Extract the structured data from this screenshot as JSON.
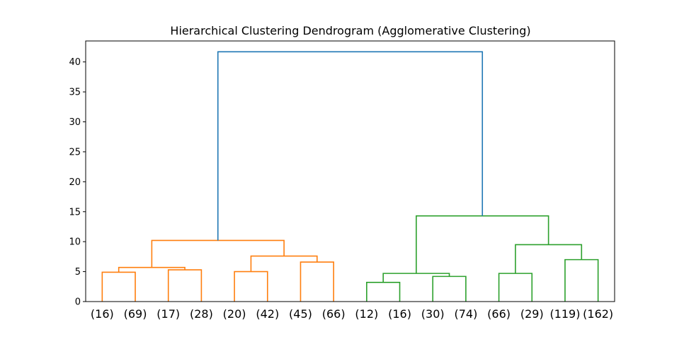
{
  "chart_data": {
    "type": "dendrogram",
    "title": "Hierarchical Clustering Dendrogram (Agglomerative Clustering)",
    "xlabel": "",
    "ylabel": "",
    "ylim": [
      0,
      43.5
    ],
    "yticks": [
      0,
      5,
      10,
      15,
      20,
      25,
      30,
      35,
      40
    ],
    "leaf_labels": [
      "(16)",
      "(69)",
      "(17)",
      "(28)",
      "(20)",
      "(42)",
      "(45)",
      "(66)",
      "(12)",
      "(16)",
      "(30)",
      "(74)",
      "(66)",
      "(29)",
      "(119)",
      "(162)"
    ],
    "colors": {
      "cluster_1": "#ff7f0e",
      "cluster_2": "#2ca02c",
      "root": "#1f77b4"
    },
    "links": [
      {
        "left": 0,
        "right": 1,
        "height": 4.9,
        "color": "cluster_1"
      },
      {
        "left": 2,
        "right": 3,
        "height": 5.3,
        "color": "cluster_1"
      },
      {
        "left": 16,
        "right": 17,
        "height": 5.7,
        "color": "cluster_1"
      },
      {
        "left": 4,
        "right": 5,
        "height": 5.0,
        "color": "cluster_1"
      },
      {
        "left": 6,
        "right": 7,
        "height": 6.6,
        "color": "cluster_1"
      },
      {
        "left": 19,
        "right": 20,
        "height": 7.6,
        "color": "cluster_1"
      },
      {
        "left": 18,
        "right": 21,
        "height": 10.2,
        "color": "cluster_1"
      },
      {
        "left": 8,
        "right": 9,
        "height": 3.2,
        "color": "cluster_2"
      },
      {
        "left": 10,
        "right": 11,
        "height": 4.2,
        "color": "cluster_2"
      },
      {
        "left": 23,
        "right": 24,
        "height": 4.7,
        "color": "cluster_2"
      },
      {
        "left": 12,
        "right": 13,
        "height": 4.7,
        "color": "cluster_2"
      },
      {
        "left": 14,
        "right": 15,
        "height": 7.0,
        "color": "cluster_2"
      },
      {
        "left": 26,
        "right": 27,
        "height": 9.5,
        "color": "cluster_2"
      },
      {
        "left": 25,
        "right": 28,
        "height": 14.3,
        "color": "cluster_2"
      },
      {
        "left": 22,
        "right": 29,
        "height": 41.7,
        "color": "root"
      }
    ]
  }
}
